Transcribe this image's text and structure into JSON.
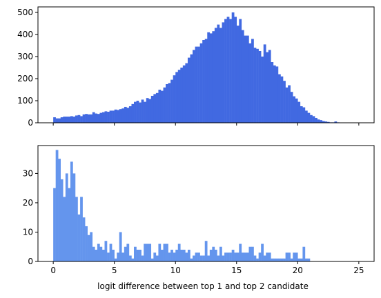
{
  "chart_data": [
    {
      "type": "bar",
      "color": "#4169e1",
      "bin_width": 0.2,
      "xlim": [
        -1.25,
        26.25
      ],
      "ylim": [
        0,
        525
      ],
      "xticks": [
        0,
        5,
        10,
        15,
        20,
        25
      ],
      "xtick_labels_visible": false,
      "yticks": [
        0,
        100,
        200,
        300,
        400,
        500
      ],
      "xlabel": "",
      "ylabel": "",
      "grid": false,
      "x": [
        0.0,
        0.2,
        0.4,
        0.6,
        0.8,
        1.0,
        1.2,
        1.4,
        1.6,
        1.8,
        2.0,
        2.2,
        2.4,
        2.6,
        2.8,
        3.0,
        3.2,
        3.4,
        3.6,
        3.8,
        4.0,
        4.2,
        4.4,
        4.6,
        4.8,
        5.0,
        5.2,
        5.4,
        5.6,
        5.8,
        6.0,
        6.2,
        6.4,
        6.6,
        6.8,
        7.0,
        7.2,
        7.4,
        7.6,
        7.8,
        8.0,
        8.2,
        8.4,
        8.6,
        8.8,
        9.0,
        9.2,
        9.4,
        9.6,
        9.8,
        10.0,
        10.2,
        10.4,
        10.6,
        10.8,
        11.0,
        11.2,
        11.4,
        11.6,
        11.8,
        12.0,
        12.2,
        12.4,
        12.6,
        12.8,
        13.0,
        13.2,
        13.4,
        13.6,
        13.8,
        14.0,
        14.2,
        14.4,
        14.6,
        14.8,
        15.0,
        15.2,
        15.4,
        15.6,
        15.8,
        16.0,
        16.2,
        16.4,
        16.6,
        16.8,
        17.0,
        17.2,
        17.4,
        17.6,
        17.8,
        18.0,
        18.2,
        18.4,
        18.6,
        18.8,
        19.0,
        19.2,
        19.4,
        19.6,
        19.8,
        20.0,
        20.2,
        20.4,
        20.6,
        20.8,
        21.0,
        21.2,
        21.4,
        21.6,
        21.8,
        22.0,
        22.2,
        22.4,
        22.6,
        22.8,
        23.0,
        23.2,
        23.4,
        23.6,
        23.8,
        24.0,
        24.2,
        24.4,
        24.6,
        24.8
      ],
      "values": [
        25,
        20,
        20,
        25,
        28,
        28,
        28,
        30,
        28,
        33,
        35,
        30,
        38,
        40,
        38,
        38,
        48,
        42,
        40,
        45,
        48,
        52,
        50,
        55,
        55,
        60,
        58,
        62,
        65,
        72,
        68,
        75,
        85,
        95,
        100,
        92,
        105,
        95,
        112,
        108,
        122,
        130,
        135,
        150,
        145,
        160,
        175,
        180,
        195,
        215,
        230,
        240,
        250,
        260,
        270,
        295,
        310,
        330,
        345,
        345,
        360,
        375,
        380,
        410,
        405,
        415,
        430,
        445,
        430,
        455,
        470,
        480,
        470,
        500,
        480,
        440,
        470,
        420,
        395,
        395,
        360,
        380,
        340,
        335,
        325,
        300,
        355,
        320,
        330,
        275,
        260,
        255,
        220,
        210,
        190,
        160,
        170,
        140,
        120,
        110,
        95,
        75,
        70,
        55,
        45,
        35,
        30,
        22,
        15,
        12,
        8,
        6,
        4,
        2,
        2,
        6,
        2,
        0,
        0,
        0,
        0,
        0,
        0,
        0,
        0
      ]
    },
    {
      "type": "bar",
      "color": "#6495ed",
      "bin_width": 0.2,
      "xlim": [
        -1.25,
        26.25
      ],
      "ylim": [
        0,
        39.5
      ],
      "xticks": [
        0,
        5,
        10,
        15,
        20,
        25
      ],
      "xtick_labels_visible": true,
      "yticks": [
        0,
        10,
        20,
        30
      ],
      "xlabel": "logit difference between top 1 and top 2 candidate",
      "ylabel": "",
      "grid": false,
      "x": [
        0.0,
        0.2,
        0.4,
        0.6,
        0.8,
        1.0,
        1.2,
        1.4,
        1.6,
        1.8,
        2.0,
        2.2,
        2.4,
        2.6,
        2.8,
        3.0,
        3.2,
        3.4,
        3.6,
        3.8,
        4.0,
        4.2,
        4.4,
        4.6,
        4.8,
        5.0,
        5.2,
        5.4,
        5.6,
        5.8,
        6.0,
        6.2,
        6.4,
        6.6,
        6.8,
        7.0,
        7.2,
        7.4,
        7.6,
        7.8,
        8.0,
        8.2,
        8.4,
        8.6,
        8.8,
        9.0,
        9.2,
        9.4,
        9.6,
        9.8,
        10.0,
        10.2,
        10.4,
        10.6,
        10.8,
        11.0,
        11.2,
        11.4,
        11.6,
        11.8,
        12.0,
        12.2,
        12.4,
        12.6,
        12.8,
        13.0,
        13.2,
        13.4,
        13.6,
        13.8,
        14.0,
        14.2,
        14.4,
        14.6,
        14.8,
        15.0,
        15.2,
        15.4,
        15.6,
        15.8,
        16.0,
        16.2,
        16.4,
        16.6,
        16.8,
        17.0,
        17.2,
        17.4,
        17.6,
        17.8,
        18.0,
        18.2,
        18.4,
        18.6,
        18.8,
        19.0,
        19.2,
        19.4,
        19.6,
        19.8,
        20.0,
        20.2,
        20.4,
        20.6,
        20.8
      ],
      "values": [
        25,
        38,
        35,
        28,
        22,
        30,
        25,
        34,
        30,
        22,
        16,
        22,
        15,
        12,
        9,
        10,
        5,
        4,
        6,
        5,
        4,
        7,
        3,
        6,
        4,
        1,
        3,
        10,
        3,
        5,
        6,
        2,
        1,
        5,
        4,
        4,
        2,
        6,
        6,
        6,
        1,
        3,
        2,
        6,
        4,
        6,
        6,
        3,
        4,
        3,
        4,
        6,
        4,
        4,
        3,
        4,
        1,
        2,
        3,
        3,
        2,
        2,
        7,
        2,
        4,
        5,
        4,
        2,
        5,
        2,
        3,
        3,
        3,
        4,
        3,
        3,
        6,
        3,
        3,
        3,
        5,
        5,
        2,
        1,
        3,
        6,
        2,
        3,
        3,
        1,
        1,
        1,
        1,
        1,
        1,
        3,
        3,
        1,
        3,
        3,
        1,
        1,
        5,
        1,
        1
      ]
    }
  ]
}
